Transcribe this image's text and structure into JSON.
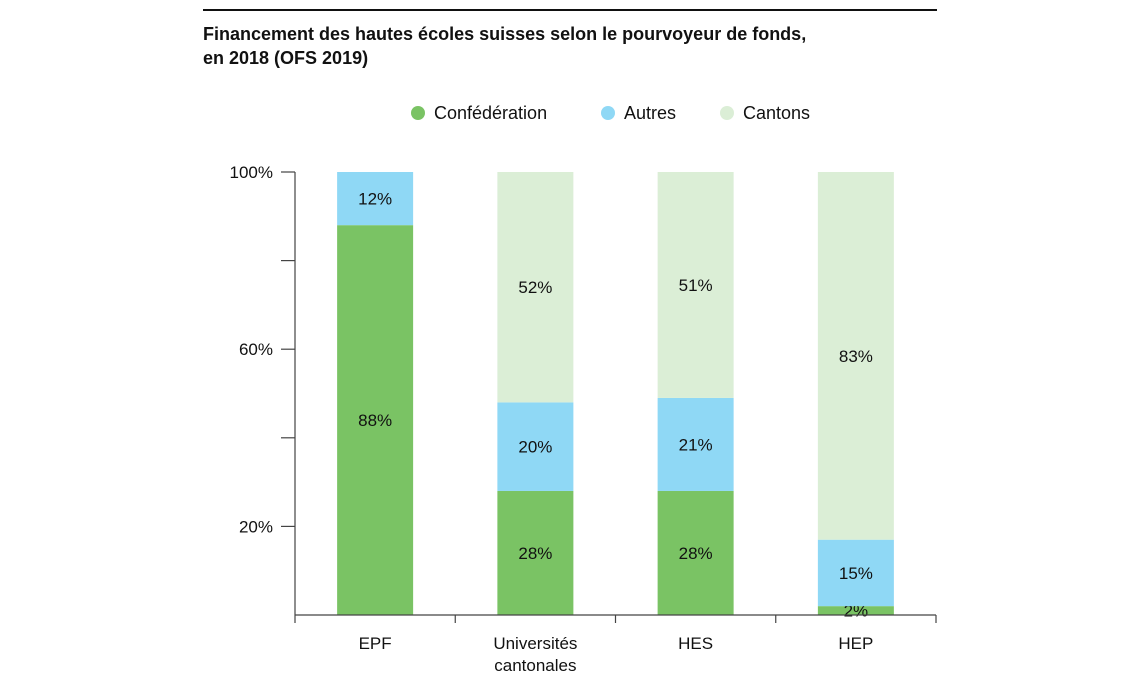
{
  "chart_data": {
    "type": "bar",
    "stacked": true,
    "title": "Financement des hautes écoles suisses selon le pourvoyeur de fonds,",
    "subtitle": "en 2018 (OFS 2019)",
    "categories": [
      "EPF",
      "Universités cantonales",
      "HES",
      "HEP"
    ],
    "category_lines": [
      [
        "EPF"
      ],
      [
        "Universités",
        "cantonales"
      ],
      [
        "HES"
      ],
      [
        "HEP"
      ]
    ],
    "series": [
      {
        "name": "Confédération",
        "color": "#7ac364",
        "values": [
          88,
          28,
          28,
          2
        ],
        "labels": [
          "88%",
          "28%",
          "28%",
          "2%"
        ]
      },
      {
        "name": "Autres",
        "color": "#8fd8f5",
        "values": [
          12,
          20,
          21,
          15
        ],
        "labels": [
          "12%",
          "20%",
          "21%",
          "15%"
        ]
      },
      {
        "name": "Cantons",
        "color": "#dbeed6",
        "values": [
          0,
          52,
          51,
          83
        ],
        "labels": [
          "",
          "52%",
          "51%",
          "83%"
        ]
      }
    ],
    "y_ticks": [
      {
        "value": 100,
        "label": "100%"
      },
      {
        "value": 80,
        "label": ""
      },
      {
        "value": 60,
        "label": "60%"
      },
      {
        "value": 40,
        "label": ""
      },
      {
        "value": 20,
        "label": "20%"
      }
    ],
    "ylim": [
      0,
      100
    ],
    "legend_position": "top-center",
    "grid": false
  }
}
